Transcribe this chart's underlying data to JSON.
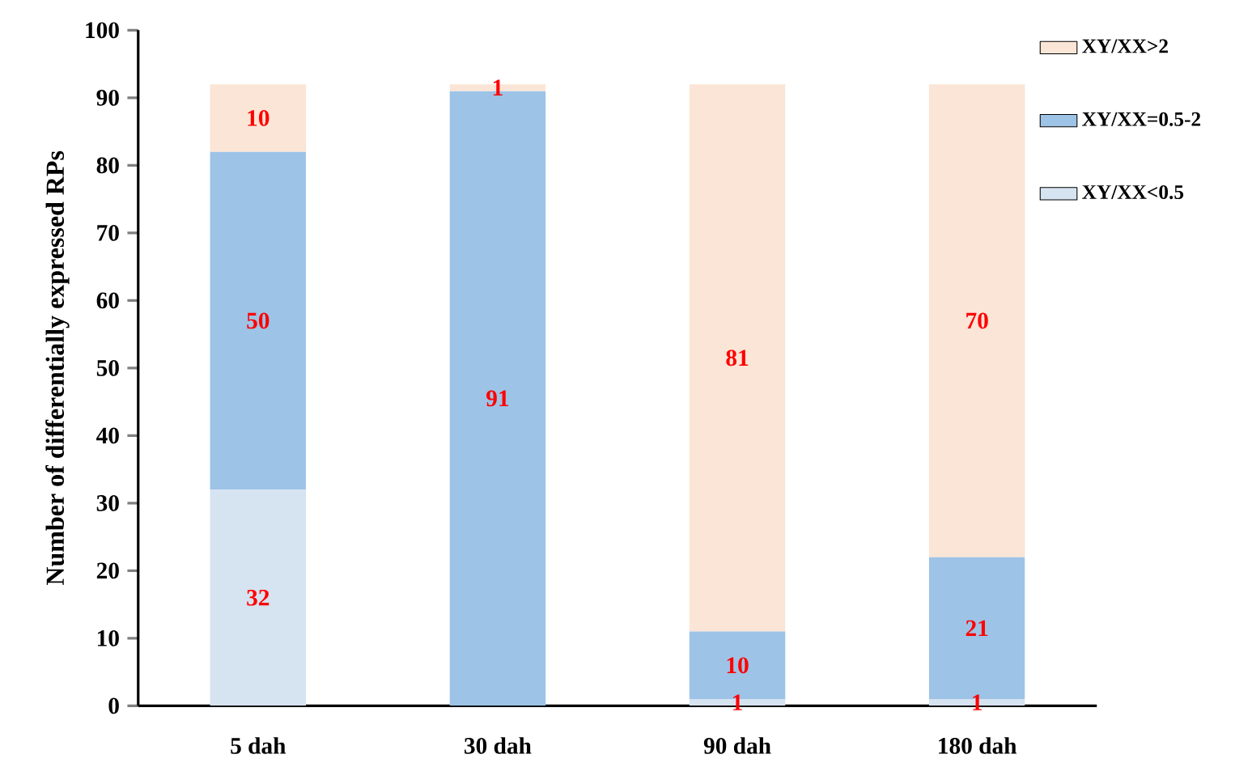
{
  "chart_data": {
    "type": "bar",
    "stacked": true,
    "ylabel": "Number of  differentially expressed RPs",
    "categories": [
      "5 dah",
      "30 dah",
      "90 dah",
      "180 dah"
    ],
    "series": [
      {
        "name": "XY/XX<0.5",
        "color": "#d6e3f0",
        "values": [
          32,
          0,
          1,
          1
        ],
        "value_labels": [
          "32",
          null,
          "1",
          "1"
        ]
      },
      {
        "name": "XY/XX=0.5-2",
        "color": "#9dc3e6",
        "values": [
          50,
          91,
          10,
          21
        ],
        "value_labels": [
          "50",
          "91",
          "10",
          "21"
        ]
      },
      {
        "name": "XY/XX>2",
        "color": "#fbe5d6",
        "values": [
          10,
          1,
          81,
          70
        ],
        "value_labels": [
          "10",
          "1",
          "81",
          "70"
        ]
      }
    ],
    "ylim": [
      0,
      100
    ],
    "yticks": [
      0,
      10,
      20,
      30,
      40,
      50,
      60,
      70,
      80,
      90,
      100
    ],
    "grid": false,
    "legend": "top right"
  }
}
